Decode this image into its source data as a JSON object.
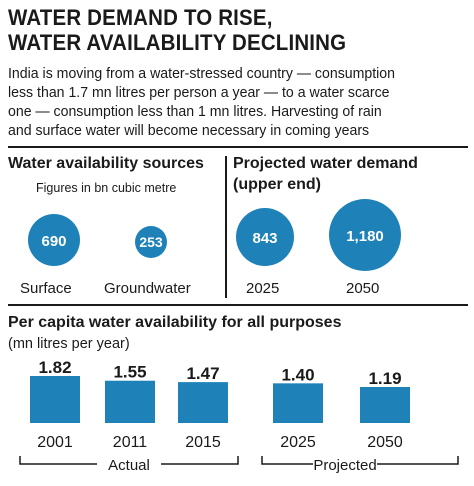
{
  "title_lines": [
    "WATER DEMAND TO RISE,",
    "WATER AVAILABILITY DECLINING"
  ],
  "description_lines": [
    "India is moving from a water-stressed country — consumption",
    "less than 1.7 mn litres per person a year — to a water scarce",
    "one — consumption less than 1 mn litres. Harvesting of rain",
    "and surface water will become necessary in coming years"
  ],
  "colors": {
    "accent": "#1e82b8",
    "text": "#1a1a1a",
    "rule": "#1a1a1a"
  },
  "availability": {
    "title": "Water availability sources",
    "subtitle": "Figures in bn cubic metre"
  },
  "demand": {
    "title_lines": [
      "Projected water demand",
      "(upper end)"
    ]
  },
  "per_capita": {
    "title": "Per capita water availability for all purposes",
    "subtitle": "(mn litres per year)",
    "groups": [
      "Actual",
      "Projected"
    ]
  },
  "chart_data": [
    {
      "type": "bubble",
      "title": "Water availability sources",
      "subtitle": "Figures in bn cubic metre",
      "categories": [
        "Surface",
        "Groundwater"
      ],
      "values": [
        690,
        253
      ]
    },
    {
      "type": "bubble",
      "title": "Projected water demand (upper end)",
      "categories": [
        "2025",
        "2050"
      ],
      "values": [
        843,
        1180
      ],
      "value_labels": [
        "843",
        "1,180"
      ]
    },
    {
      "type": "bar",
      "title": "Per capita water availability for all purposes",
      "ylabel": "(mn litres per year)",
      "categories": [
        "2001",
        "2011",
        "2015",
        "2025",
        "2050"
      ],
      "values": [
        1.82,
        1.55,
        1.47,
        1.4,
        1.19
      ],
      "groups": [
        {
          "name": "Actual",
          "categories": [
            "2001",
            "2011",
            "2015"
          ]
        },
        {
          "name": "Projected",
          "categories": [
            "2025",
            "2050"
          ]
        }
      ]
    }
  ]
}
